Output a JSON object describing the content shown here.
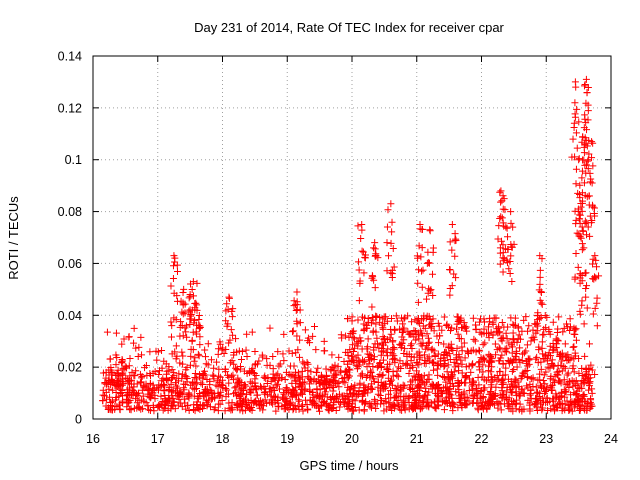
{
  "chart_data": {
    "type": "scatter",
    "title": "Day 231 of 2014, Rate Of TEC Index for receiver cpar",
    "xlabel": "GPS time / hours",
    "ylabel": "ROTI / TECUs",
    "xlim": [
      16,
      24
    ],
    "ylim": [
      0,
      0.14
    ],
    "xticks": [
      16,
      17,
      18,
      19,
      20,
      21,
      22,
      23,
      24
    ],
    "yticks": [
      0,
      0.02,
      0.04,
      0.06,
      0.08,
      0.1,
      0.12,
      0.14
    ],
    "xtick_labels": [
      "16",
      "17",
      "18",
      "19",
      "20",
      "21",
      "22",
      "23",
      "24"
    ],
    "ytick_labels": [
      "0",
      "0.02",
      "0.04",
      "0.06",
      "0.08",
      "0.1",
      "0.12",
      "0.14"
    ],
    "grid": true,
    "marker": "+",
    "color": "#ff0000",
    "series": [
      {
        "name": "ROTI",
        "x_range": [
          16.15,
          23.75
        ],
        "baseline_band": [
          0.005,
          0.025
        ],
        "features": [
          {
            "x": 17.25,
            "y": 0.063
          },
          {
            "x": 17.4,
            "y": 0.05
          },
          {
            "x": 17.5,
            "y": 0.048
          },
          {
            "x": 17.55,
            "y": 0.053
          },
          {
            "x": 17.6,
            "y": 0.044
          },
          {
            "x": 18.1,
            "y": 0.047
          },
          {
            "x": 19.15,
            "y": 0.049
          },
          {
            "x": 20.15,
            "y": 0.075
          },
          {
            "x": 20.35,
            "y": 0.068
          },
          {
            "x": 20.6,
            "y": 0.083
          },
          {
            "x": 21.05,
            "y": 0.075
          },
          {
            "x": 21.2,
            "y": 0.073
          },
          {
            "x": 21.55,
            "y": 0.075
          },
          {
            "x": 22.3,
            "y": 0.088
          },
          {
            "x": 22.35,
            "y": 0.085
          },
          {
            "x": 22.45,
            "y": 0.08
          },
          {
            "x": 22.9,
            "y": 0.063
          },
          {
            "x": 23.45,
            "y": 0.13
          },
          {
            "x": 23.5,
            "y": 0.1
          },
          {
            "x": 23.5,
            "y": 0.081
          },
          {
            "x": 23.55,
            "y": 0.093
          },
          {
            "x": 23.58,
            "y": 0.066
          },
          {
            "x": 23.6,
            "y": 0.129
          },
          {
            "x": 23.62,
            "y": 0.131
          },
          {
            "x": 23.65,
            "y": 0.1
          },
          {
            "x": 23.7,
            "y": 0.107
          },
          {
            "x": 23.75,
            "y": 0.063
          }
        ]
      }
    ]
  }
}
